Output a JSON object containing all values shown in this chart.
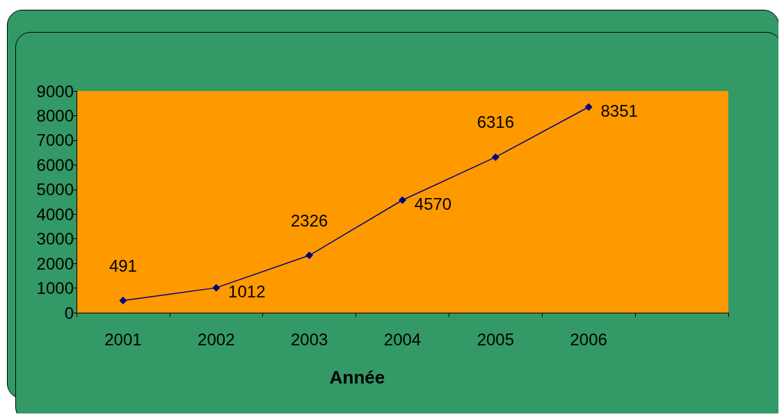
{
  "chart_data": {
    "type": "line",
    "xlabel": "Année",
    "categories": [
      "2001",
      "2002",
      "2003",
      "2004",
      "2005",
      "2006",
      null
    ],
    "values": [
      491,
      1012,
      2326,
      4570,
      6316,
      8351,
      null
    ],
    "color": "#000080",
    "marker": "diamond",
    "line_style": "solid",
    "ylim": [
      0,
      9000
    ],
    "yticks": [
      0,
      1000,
      2000,
      3000,
      4000,
      5000,
      6000,
      7000,
      8000,
      9000
    ],
    "grid": false,
    "data_labels": true
  }
}
